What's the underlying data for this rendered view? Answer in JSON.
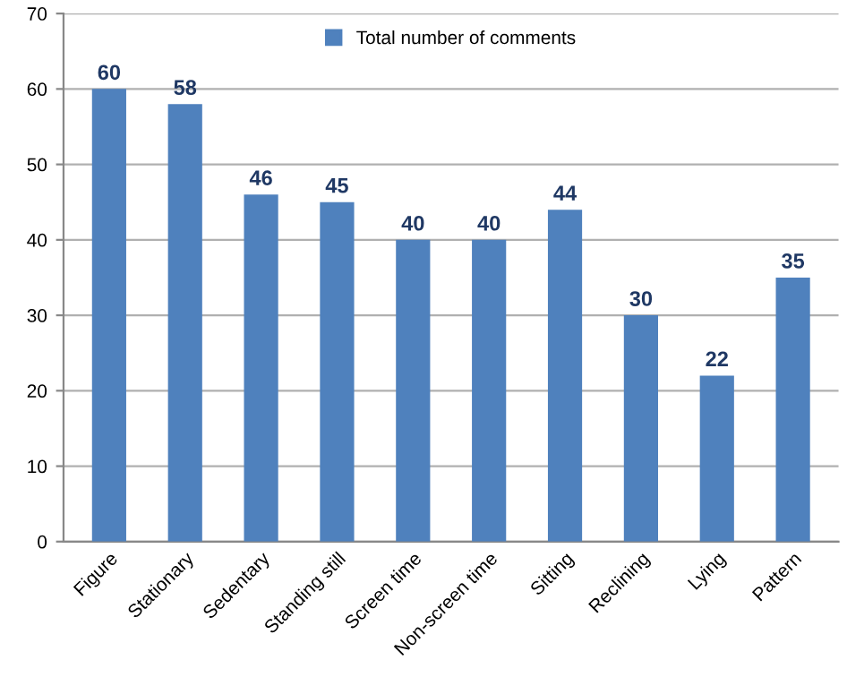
{
  "chart_data": {
    "type": "bar",
    "categories": [
      "Figure",
      "Stationary",
      "Sedentary",
      "Standing still",
      "Screen time",
      "Non-screen time",
      "Sitting",
      "Reclining",
      "Lying",
      "Pattern"
    ],
    "series": [
      {
        "name": "Total number of comments",
        "color": "#4f81bd",
        "values": [
          60,
          58,
          46,
          45,
          40,
          40,
          44,
          30,
          22,
          35
        ]
      }
    ],
    "ylim": [
      0,
      70
    ],
    "yticks": [
      0,
      10,
      20,
      30,
      40,
      50,
      60,
      70
    ],
    "grid": "y",
    "legend": "top",
    "data_labels": true
  }
}
